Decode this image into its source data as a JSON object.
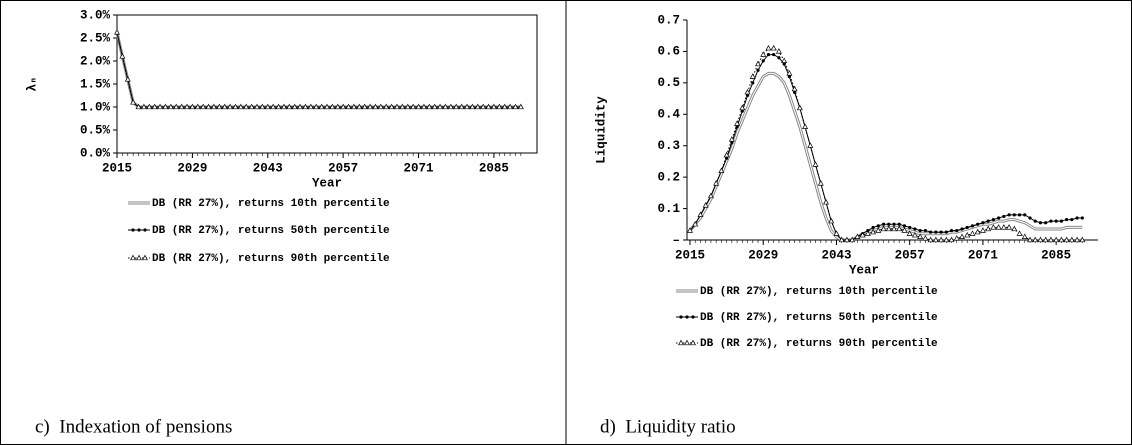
{
  "chart_data": [
    {
      "type": "line",
      "caption": "c)  Indexation of pensions",
      "ylabel": "λₙ",
      "xlabel": "Year",
      "plot_border": true,
      "xlim": [
        2015,
        2093
      ],
      "xticks": [
        2015,
        2029,
        2043,
        2057,
        2071,
        2085
      ],
      "ylim": [
        0,
        3
      ],
      "yticks": [
        {
          "value": 0,
          "label": "0.0%"
        },
        {
          "value": 0.5,
          "label": "0.5%"
        },
        {
          "value": 1,
          "label": "1.0%"
        },
        {
          "value": 1.5,
          "label": "1.5%"
        },
        {
          "value": 2,
          "label": "2.0%"
        },
        {
          "value": 2.5,
          "label": "2.5%"
        },
        {
          "value": 3,
          "label": "3.0%"
        }
      ],
      "x": [
        2015,
        2016,
        2017,
        2018,
        2019,
        2020,
        2021,
        2022,
        2023,
        2024,
        2025,
        2026,
        2027,
        2028,
        2029,
        2030,
        2031,
        2032,
        2033,
        2034,
        2035,
        2036,
        2037,
        2038,
        2039,
        2040,
        2041,
        2042,
        2043,
        2044,
        2045,
        2046,
        2047,
        2048,
        2049,
        2050,
        2051,
        2052,
        2053,
        2054,
        2055,
        2056,
        2057,
        2058,
        2059,
        2060,
        2061,
        2062,
        2063,
        2064,
        2065,
        2066,
        2067,
        2068,
        2069,
        2070,
        2071,
        2072,
        2073,
        2074,
        2075,
        2076,
        2077,
        2078,
        2079,
        2080,
        2081,
        2082,
        2083,
        2084,
        2085,
        2086,
        2087,
        2088,
        2089,
        2090
      ],
      "series": [
        {
          "name": "DB (RR 27%), returns 10th percentile",
          "color": "#888888",
          "style": "double",
          "marker": "none",
          "values": [
            2.62,
            2.1,
            1.6,
            1.1,
            1,
            1,
            1,
            1,
            1,
            1,
            1,
            1,
            1,
            1,
            1,
            1,
            1,
            1,
            1,
            1,
            1,
            1,
            1,
            1,
            1,
            1,
            1,
            1,
            1,
            1,
            1,
            1,
            1,
            1,
            1,
            1,
            1,
            1,
            1,
            1,
            1,
            1,
            1,
            1,
            1,
            1,
            1,
            1,
            1,
            1,
            1,
            1,
            1,
            1,
            1,
            1,
            1,
            1,
            1,
            1,
            1,
            1,
            1,
            1,
            1,
            1,
            1,
            1,
            1,
            1,
            1,
            1,
            1,
            1,
            1,
            1
          ]
        },
        {
          "name": "DB (RR 27%), returns 50th percentile",
          "color": "#000000",
          "style": "solid",
          "marker": "dot",
          "values": [
            2.62,
            2.1,
            1.6,
            1.1,
            1,
            1,
            1,
            1,
            1,
            1,
            1,
            1,
            1,
            1,
            1,
            1,
            1,
            1,
            1,
            1,
            1,
            1,
            1,
            1,
            1,
            1,
            1,
            1,
            1,
            1,
            1,
            1,
            1,
            1,
            1,
            1,
            1,
            1,
            1,
            1,
            1,
            1,
            1,
            1,
            1,
            1,
            1,
            1,
            1,
            1,
            1,
            1,
            1,
            1,
            1,
            1,
            1,
            1,
            1,
            1,
            1,
            1,
            1,
            1,
            1,
            1,
            1,
            1,
            1,
            1,
            1,
            1,
            1,
            1,
            1,
            1
          ]
        },
        {
          "name": "DB (RR 27%), returns 90th percentile",
          "color": "#000000",
          "style": "dotted",
          "marker": "triangle",
          "values": [
            2.62,
            2.1,
            1.6,
            1.1,
            1,
            1,
            1,
            1,
            1,
            1,
            1,
            1,
            1,
            1,
            1,
            1,
            1,
            1,
            1,
            1,
            1,
            1,
            1,
            1,
            1,
            1,
            1,
            1,
            1,
            1,
            1,
            1,
            1,
            1,
            1,
            1,
            1,
            1,
            1,
            1,
            1,
            1,
            1,
            1,
            1,
            1,
            1,
            1,
            1,
            1,
            1,
            1,
            1,
            1,
            1,
            1,
            1,
            1,
            1,
            1,
            1,
            1,
            1,
            1,
            1,
            1,
            1,
            1,
            1,
            1,
            1,
            1,
            1,
            1,
            1,
            1
          ]
        }
      ]
    },
    {
      "type": "line",
      "caption": "d)  Liquidity ratio",
      "ylabel": "Liquidity",
      "xlabel": "Year",
      "plot_border": false,
      "xlim": [
        2015,
        2093
      ],
      "xticks": [
        2015,
        2029,
        2043,
        2057,
        2071,
        2085
      ],
      "ylim": [
        0,
        0.7
      ],
      "yticks": [
        {
          "value": 0,
          "label": "–"
        },
        0.1,
        0.2,
        0.3,
        0.4,
        0.5,
        0.6,
        0.7
      ],
      "x": [
        2015,
        2016,
        2017,
        2018,
        2019,
        2020,
        2021,
        2022,
        2023,
        2024,
        2025,
        2026,
        2027,
        2028,
        2029,
        2030,
        2031,
        2032,
        2033,
        2034,
        2035,
        2036,
        2037,
        2038,
        2039,
        2040,
        2041,
        2042,
        2043,
        2044,
        2045,
        2046,
        2047,
        2048,
        2049,
        2050,
        2051,
        2052,
        2053,
        2054,
        2055,
        2056,
        2057,
        2058,
        2059,
        2060,
        2061,
        2062,
        2063,
        2064,
        2065,
        2066,
        2067,
        2068,
        2069,
        2070,
        2071,
        2072,
        2073,
        2074,
        2075,
        2076,
        2077,
        2078,
        2079,
        2080,
        2081,
        2082,
        2083,
        2084,
        2085,
        2086,
        2087,
        2088,
        2089,
        2090
      ],
      "series": [
        {
          "name": "DB (RR 27%), returns 10th percentile",
          "color": "#888888",
          "style": "double",
          "marker": "none",
          "values": [
            0.03,
            0.05,
            0.07,
            0.1,
            0.13,
            0.17,
            0.21,
            0.25,
            0.29,
            0.34,
            0.38,
            0.42,
            0.46,
            0.49,
            0.52,
            0.53,
            0.53,
            0.52,
            0.5,
            0.46,
            0.41,
            0.36,
            0.3,
            0.24,
            0.18,
            0.12,
            0.07,
            0.03,
            0.01,
            0.0,
            0.0,
            0.0,
            0.01,
            0.02,
            0.025,
            0.03,
            0.035,
            0.04,
            0.04,
            0.04,
            0.04,
            0.035,
            0.03,
            0.025,
            0.02,
            0.02,
            0.02,
            0.02,
            0.02,
            0.02,
            0.025,
            0.025,
            0.03,
            0.035,
            0.04,
            0.045,
            0.05,
            0.05,
            0.055,
            0.06,
            0.06,
            0.065,
            0.065,
            0.06,
            0.055,
            0.045,
            0.035,
            0.035,
            0.035,
            0.035,
            0.035,
            0.035,
            0.04,
            0.04,
            0.04,
            0.04
          ]
        },
        {
          "name": "DB (RR 27%), returns 50th percentile",
          "color": "#000000",
          "style": "solid",
          "marker": "dot",
          "values": [
            0.03,
            0.05,
            0.08,
            0.11,
            0.14,
            0.18,
            0.22,
            0.26,
            0.31,
            0.36,
            0.41,
            0.46,
            0.5,
            0.54,
            0.57,
            0.59,
            0.59,
            0.58,
            0.56,
            0.52,
            0.47,
            0.42,
            0.36,
            0.3,
            0.24,
            0.18,
            0.12,
            0.06,
            0.02,
            0.0,
            0.0,
            0.0,
            0.01,
            0.02,
            0.03,
            0.04,
            0.045,
            0.05,
            0.05,
            0.05,
            0.05,
            0.045,
            0.04,
            0.035,
            0.03,
            0.03,
            0.025,
            0.025,
            0.025,
            0.025,
            0.03,
            0.03,
            0.035,
            0.04,
            0.045,
            0.05,
            0.055,
            0.06,
            0.065,
            0.07,
            0.075,
            0.08,
            0.08,
            0.08,
            0.08,
            0.07,
            0.06,
            0.055,
            0.055,
            0.06,
            0.06,
            0.06,
            0.065,
            0.065,
            0.07,
            0.07
          ]
        },
        {
          "name": "DB (RR 27%), returns 90th percentile",
          "color": "#000000",
          "style": "dotted",
          "marker": "triangle",
          "values": [
            0.03,
            0.05,
            0.08,
            0.11,
            0.14,
            0.18,
            0.22,
            0.27,
            0.32,
            0.37,
            0.42,
            0.47,
            0.52,
            0.56,
            0.59,
            0.61,
            0.61,
            0.6,
            0.57,
            0.53,
            0.48,
            0.42,
            0.36,
            0.3,
            0.24,
            0.18,
            0.12,
            0.06,
            0.02,
            0.0,
            0.0,
            0.0,
            0.01,
            0.015,
            0.02,
            0.025,
            0.03,
            0.035,
            0.035,
            0.035,
            0.035,
            0.03,
            0.02,
            0.015,
            0.01,
            0.005,
            0.0,
            0.0,
            0.0,
            0.0,
            0.0,
            0.005,
            0.01,
            0.015,
            0.02,
            0.025,
            0.03,
            0.035,
            0.04,
            0.04,
            0.04,
            0.04,
            0.035,
            0.02,
            0.01,
            0.0,
            0.0,
            0.0,
            0.0,
            0.0,
            0.0,
            0.0,
            0.0,
            0.0,
            0.0,
            0.0
          ]
        }
      ]
    }
  ]
}
